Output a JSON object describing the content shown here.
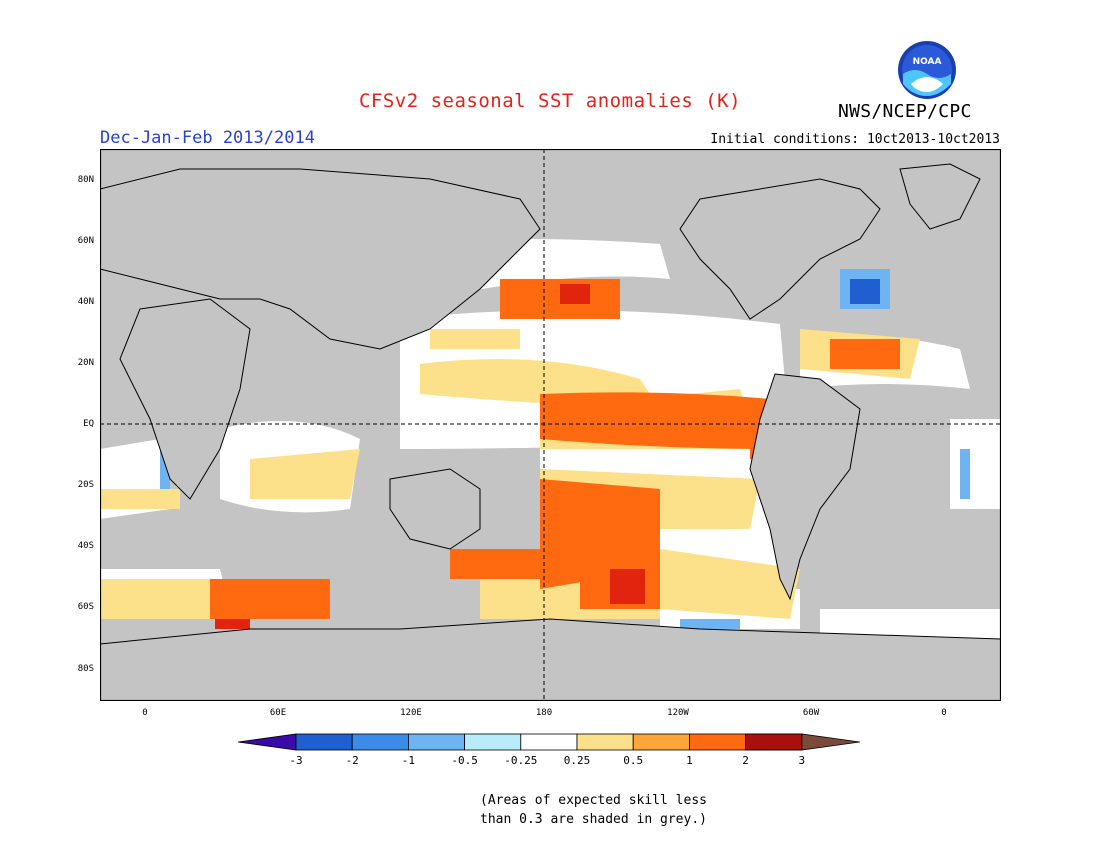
{
  "title": "CFSv2 seasonal SST anomalies (K)",
  "agency": "NWS/NCEP/CPC",
  "logo_text": "NOAA",
  "season": "Dec-Jan-Feb 2013/2014",
  "initial_conditions": "Initial conditions: 10ct2013-10ct2013",
  "lat_labels": [
    "80N",
    "60N",
    "40N",
    "20N",
    "EQ",
    "20S",
    "40S",
    "60S",
    "80S"
  ],
  "lon_labels": [
    "0",
    "60E",
    "120E",
    "180",
    "120W",
    "60W",
    "0"
  ],
  "colorbar": {
    "labels": [
      "-3",
      "-2",
      "-1",
      "-0.5",
      "-0.25",
      "0.25",
      "0.5",
      "1",
      "2",
      "3"
    ],
    "colors": [
      "#3a0aa8",
      "#1f5fd0",
      "#3a8ce8",
      "#6fb4f2",
      "#b8ecf8",
      "#ffffff",
      "#fde18a",
      "#fca53a",
      "#ff6a10",
      "#e0240e",
      "#a8100c",
      "#7a4a3a"
    ]
  },
  "note_line1": "(Areas of expected skill less",
  "note_line2": "than 0.3 are shaded in grey.)",
  "colors": {
    "grey_shade": "#c4c4c4",
    "land_white": "#ffffff"
  }
}
